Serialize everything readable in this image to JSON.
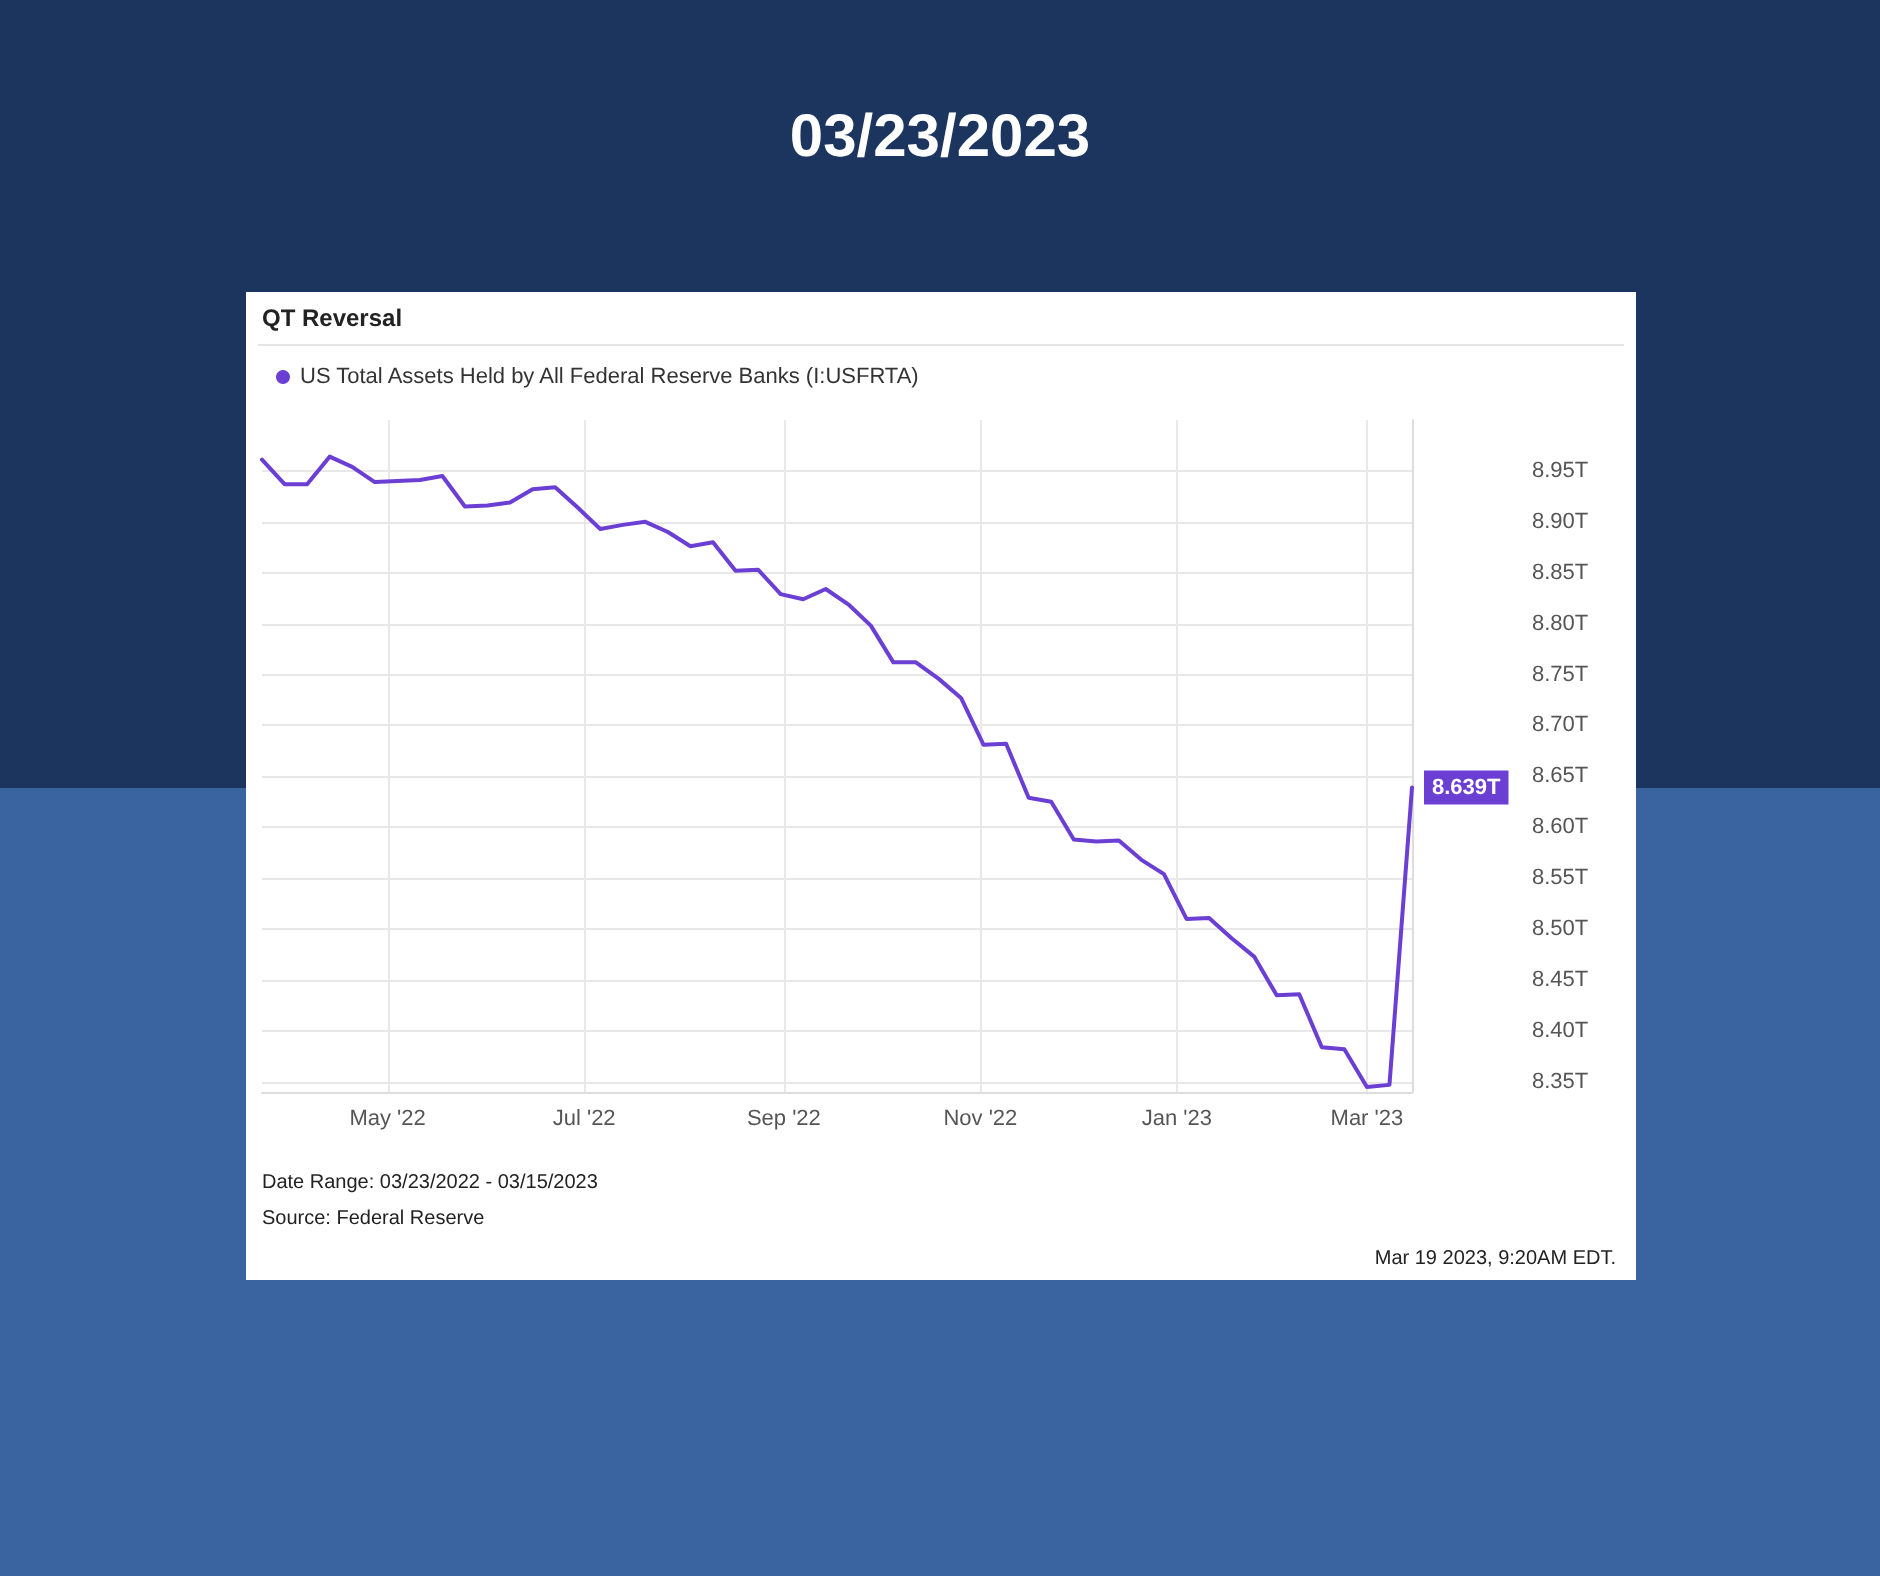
{
  "chart_data": {
    "type": "line",
    "title": "QT Reversal",
    "subtitle": "03/23/2023",
    "annotations": [
      "Date Range: 03/23/2022 - 03/15/2023",
      "Source: Federal Reserve",
      "Mar 19 2023, 9:20AM EDT."
    ],
    "x": [
      "2022-03-23",
      "2022-03-30",
      "2022-04-06",
      "2022-04-13",
      "2022-04-20",
      "2022-04-27",
      "2022-05-04",
      "2022-05-11",
      "2022-05-18",
      "2022-05-25",
      "2022-06-01",
      "2022-06-08",
      "2022-06-15",
      "2022-06-22",
      "2022-06-29",
      "2022-07-06",
      "2022-07-13",
      "2022-07-20",
      "2022-07-27",
      "2022-08-03",
      "2022-08-10",
      "2022-08-17",
      "2022-08-24",
      "2022-08-31",
      "2022-09-07",
      "2022-09-14",
      "2022-09-21",
      "2022-09-28",
      "2022-10-05",
      "2022-10-12",
      "2022-10-19",
      "2022-10-26",
      "2022-11-02",
      "2022-11-09",
      "2022-11-16",
      "2022-11-23",
      "2022-11-30",
      "2022-12-07",
      "2022-12-14",
      "2022-12-21",
      "2022-12-28",
      "2023-01-04",
      "2023-01-11",
      "2023-01-18",
      "2023-01-25",
      "2023-02-01",
      "2023-02-08",
      "2023-02-15",
      "2023-02-22",
      "2023-03-01",
      "2023-03-08",
      "2023-03-15"
    ],
    "series": [
      {
        "name": "US Total Assets Held by All Federal Reserve Banks (I:USFRTA)",
        "color": "#6b3fd4",
        "values": [
          8.961,
          8.937,
          8.937,
          8.964,
          8.954,
          8.939,
          8.94,
          8.941,
          8.945,
          8.915,
          8.916,
          8.919,
          8.932,
          8.934,
          8.914,
          8.893,
          8.897,
          8.9,
          8.89,
          8.876,
          8.88,
          8.852,
          8.853,
          8.829,
          8.824,
          8.834,
          8.819,
          8.798,
          8.762,
          8.762,
          8.746,
          8.727,
          8.681,
          8.682,
          8.629,
          8.625,
          8.588,
          8.586,
          8.587,
          8.568,
          8.554,
          8.51,
          8.511,
          8.491,
          8.473,
          8.435,
          8.436,
          8.384,
          8.382,
          8.345,
          8.347,
          8.639
        ],
        "value_labels": [
          null,
          null,
          null,
          null,
          null,
          null,
          null,
          null,
          null,
          null,
          null,
          null,
          null,
          null,
          null,
          null,
          null,
          null,
          null,
          null,
          null,
          null,
          null,
          null,
          null,
          null,
          null,
          null,
          null,
          null,
          null,
          null,
          null,
          null,
          null,
          null,
          null,
          null,
          null,
          null,
          null,
          null,
          null,
          null,
          null,
          null,
          null,
          null,
          null,
          null,
          null,
          "8.639T"
        ]
      }
    ],
    "xlim": [
      "2022-03-23",
      "2023-03-15"
    ],
    "xticks": [
      {
        "value": "2022-05-01",
        "label": "May '22"
      },
      {
        "value": "2022-07-01",
        "label": "Jul '22"
      },
      {
        "value": "2022-09-01",
        "label": "Sep '22"
      },
      {
        "value": "2022-11-01",
        "label": "Nov '22"
      },
      {
        "value": "2023-01-01",
        "label": "Jan '23"
      },
      {
        "value": "2023-03-01",
        "label": "Mar '23"
      }
    ],
    "ylim": [
      8.34,
      9.0
    ],
    "yticks": [
      {
        "value": 8.35,
        "label": "8.35T"
      },
      {
        "value": 8.4,
        "label": "8.40T"
      },
      {
        "value": 8.45,
        "label": "8.45T"
      },
      {
        "value": 8.5,
        "label": "8.50T"
      },
      {
        "value": 8.55,
        "label": "8.55T"
      },
      {
        "value": 8.6,
        "label": "8.60T"
      },
      {
        "value": 8.65,
        "label": "8.65T"
      },
      {
        "value": 8.7,
        "label": "8.70T"
      },
      {
        "value": 8.75,
        "label": "8.75T"
      },
      {
        "value": 8.8,
        "label": "8.80T"
      },
      {
        "value": 8.85,
        "label": "8.85T"
      },
      {
        "value": 8.9,
        "label": "8.90T"
      },
      {
        "value": 8.95,
        "label": "8.95T"
      }
    ],
    "grid": true,
    "legend": "top left",
    "marker": "none",
    "line_style": "solid"
  }
}
